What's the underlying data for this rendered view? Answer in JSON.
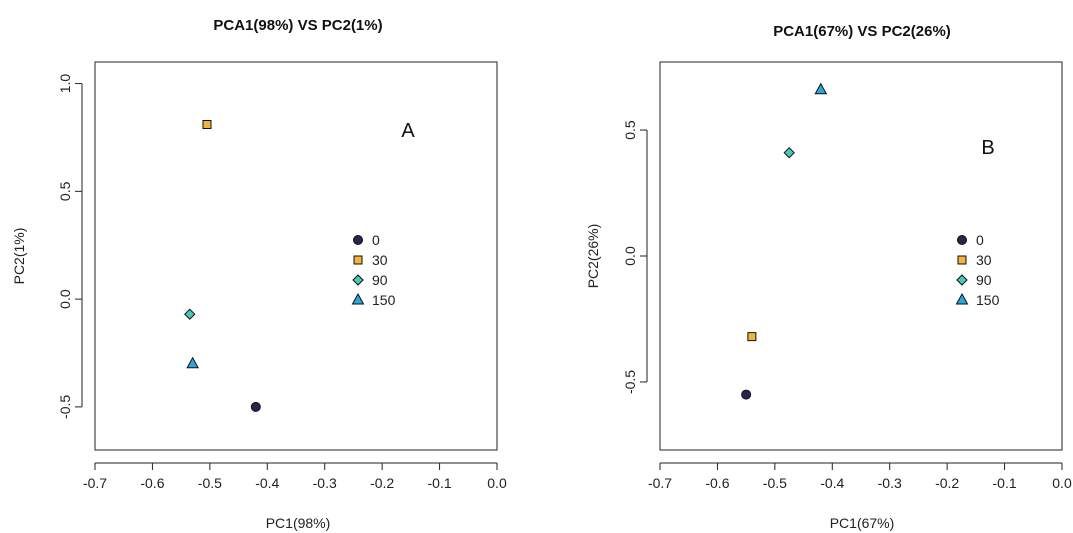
{
  "chart_data": [
    {
      "type": "scatter",
      "title": "PCA1(98%) VS PC2(1%)",
      "xlabel": "PC1(98%)",
      "ylabel": "PC2(1%)",
      "panel_label": "A",
      "xlim": [
        -0.7,
        0.0
      ],
      "ylim": [
        -0.7,
        1.1
      ],
      "xticks": [
        "-0.7",
        "-0.6",
        "-0.5",
        "-0.4",
        "-0.3",
        "-0.2",
        "-0.1",
        "0.0"
      ],
      "yticks": [
        "-0.5",
        "0.0",
        "0.5",
        "1.0"
      ],
      "legend_position": "center-right",
      "series": [
        {
          "name": "0",
          "marker": "circle",
          "color": "#2a2350",
          "x": -0.42,
          "y": -0.5
        },
        {
          "name": "30",
          "marker": "square",
          "color": "#f0b43c",
          "x": -0.505,
          "y": 0.81
        },
        {
          "name": "90",
          "marker": "diamond",
          "color": "#48c8b8",
          "x": -0.535,
          "y": -0.07
        },
        {
          "name": "150",
          "marker": "triangle",
          "color": "#2aa8d8",
          "x": -0.53,
          "y": -0.3
        }
      ]
    },
    {
      "type": "scatter",
      "title": "PCA1(67%) VS PC2(26%)",
      "xlabel": "PC1(67%)",
      "ylabel": "PC2(26%)",
      "panel_label": "B",
      "xlim": [
        -0.7,
        0.0
      ],
      "ylim": [
        -0.77,
        0.77
      ],
      "xticks": [
        "-0.7",
        "-0.6",
        "-0.5",
        "-0.4",
        "-0.3",
        "-0.2",
        "-0.1",
        "0.0"
      ],
      "yticks": [
        "-0.5",
        "0.0",
        "0.5"
      ],
      "legend_position": "center-right",
      "series": [
        {
          "name": "0",
          "marker": "circle",
          "color": "#2a2350",
          "x": -0.55,
          "y": -0.55
        },
        {
          "name": "30",
          "marker": "square",
          "color": "#f0b43c",
          "x": -0.54,
          "y": -0.32
        },
        {
          "name": "90",
          "marker": "diamond",
          "color": "#48c8b8",
          "x": -0.475,
          "y": 0.41
        },
        {
          "name": "150",
          "marker": "triangle",
          "color": "#2aa8d8",
          "x": -0.42,
          "y": 0.66
        }
      ]
    }
  ]
}
